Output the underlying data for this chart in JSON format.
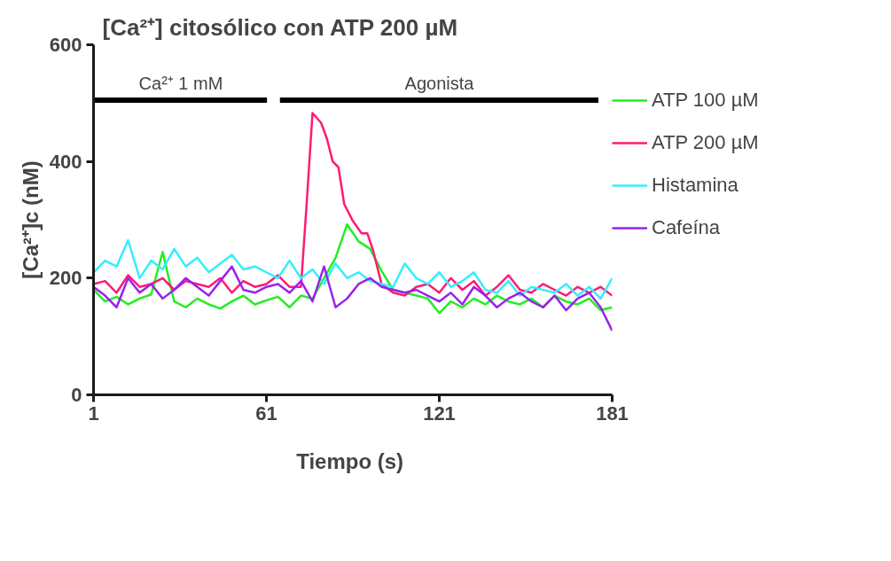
{
  "chart_data": {
    "type": "line",
    "title": "[Ca²⁺] citosólico con ATP 200 µM",
    "xlabel": "Tiempo  (s)",
    "ylabel": "[Ca²⁺]c (nM)",
    "x": [
      1,
      5,
      9,
      13,
      17,
      21,
      25,
      29,
      33,
      37,
      41,
      45,
      49,
      53,
      57,
      61,
      65,
      69,
      73,
      77,
      81,
      85,
      89,
      93,
      97,
      101,
      105,
      109,
      113,
      117,
      121,
      125,
      129,
      133,
      137,
      141,
      145,
      149,
      153,
      157,
      161,
      165,
      169,
      173,
      177,
      181
    ],
    "series": [
      {
        "name": "ATP 100 µM",
        "color": "#22ee22",
        "values": [
          180,
          160,
          168,
          155,
          165,
          172,
          245,
          160,
          150,
          165,
          155,
          148,
          160,
          170,
          155,
          162,
          168,
          150,
          170,
          165,
          200,
          235,
          292,
          263,
          250,
          212,
          180,
          175,
          170,
          165,
          140,
          160,
          150,
          165,
          155,
          170,
          160,
          155,
          165,
          150,
          170,
          160,
          155,
          165,
          145,
          150
        ]
      },
      {
        "name": "ATP 200 µM",
        "color": "#ff1a75",
        "x": [
          1,
          5,
          9,
          13,
          17,
          21,
          25,
          29,
          33,
          37,
          41,
          45,
          49,
          53,
          57,
          61,
          65,
          69,
          73,
          75,
          77,
          80,
          82,
          84,
          86,
          88,
          91,
          94,
          96,
          98,
          101,
          105,
          109,
          113,
          117,
          121,
          125,
          129,
          133,
          137,
          141,
          145,
          149,
          153,
          157,
          161,
          165,
          169,
          173,
          177,
          181
        ],
        "values": [
          190,
          195,
          175,
          205,
          185,
          190,
          200,
          180,
          195,
          190,
          185,
          200,
          175,
          195,
          185,
          190,
          205,
          185,
          185,
          330,
          483,
          466,
          439,
          400,
          390,
          327,
          298,
          277,
          277,
          248,
          189,
          175,
          170,
          185,
          190,
          175,
          200,
          180,
          195,
          170,
          185,
          205,
          180,
          175,
          190,
          180,
          170,
          185,
          175,
          185,
          170
        ]
      },
      {
        "name": "Histamina",
        "color": "#33eeff",
        "values": [
          210,
          230,
          220,
          265,
          200,
          230,
          215,
          250,
          220,
          235,
          210,
          225,
          240,
          215,
          220,
          210,
          200,
          230,
          200,
          215,
          190,
          225,
          200,
          210,
          195,
          190,
          185,
          225,
          200,
          190,
          210,
          185,
          195,
          210,
          180,
          175,
          195,
          170,
          185,
          180,
          175,
          190,
          170,
          185,
          165,
          200
        ]
      },
      {
        "type": "line",
        "color": "#000000",
        "x": [
          1.4,
          61.2
        ],
        "values": [
          505,
          505
        ]
      },
      {
        "type": "line",
        "color": "#000000",
        "x": [
          65.7,
          176.2
        ],
        "values": [
          505,
          505
        ]
      },
      {
        "name": "Cafeína",
        "color": "#9922ee",
        "values": [
          185,
          170,
          150,
          200,
          175,
          190,
          165,
          180,
          200,
          185,
          170,
          195,
          220,
          180,
          175,
          185,
          190,
          175,
          195,
          160,
          220,
          150,
          165,
          190,
          200,
          185,
          180,
          175,
          180,
          170,
          160,
          175,
          155,
          185,
          170,
          150,
          165,
          175,
          160,
          150,
          170,
          145,
          165,
          175,
          150,
          110
        ]
      }
    ],
    "xlim": [
      1,
      181
    ],
    "xticks": [
      1,
      61,
      121,
      181
    ],
    "ylim": [
      0,
      600
    ],
    "yticks": [
      0,
      200,
      400,
      600
    ],
    "annotations": [
      {
        "text": "Ca²⁺ 1 mM",
        "x": 31.3,
        "y": 505
      },
      {
        "text": "Agonista",
        "x": 121,
        "y": 505
      }
    ],
    "legend": "right",
    "grid": false,
    "line_style": "solid",
    "marker": "none"
  }
}
